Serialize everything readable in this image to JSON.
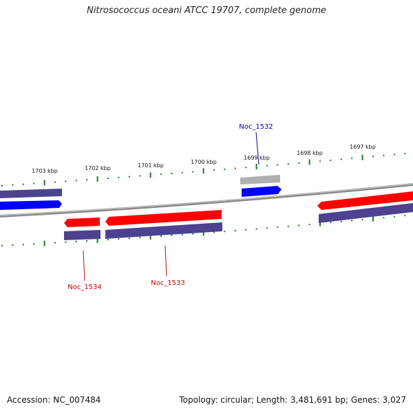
{
  "title": "Nitrosococcus oceani ATCC 19707, complete genome",
  "footer": {
    "accession": "Accession: NC_007484",
    "summary": "Topology: circular; Length: 3,481,691 bp; Genes: 3,027"
  },
  "colors": {
    "backbone": "#8a8a8a",
    "tick": "#1a7a1a",
    "forward_cds": "#ff0000",
    "reverse_cds": "#0000ff",
    "gene_bar": "#4b4390",
    "other_feature": "#b0b0b0",
    "label_red": "#cc0000",
    "label_blue": "#000099"
  },
  "kbp_labels": [
    "1703 kbp",
    "1702 kbp",
    "1701 kbp",
    "1700 kbp",
    "1699 kbp",
    "1698 kbp",
    "1697 kbp"
  ],
  "gene_labels": [
    {
      "text": "Noc_1534",
      "strand": "reverse"
    },
    {
      "text": "Noc_1533",
      "strand": "reverse"
    },
    {
      "text": "Noc_1532",
      "strand": "forward"
    }
  ]
}
